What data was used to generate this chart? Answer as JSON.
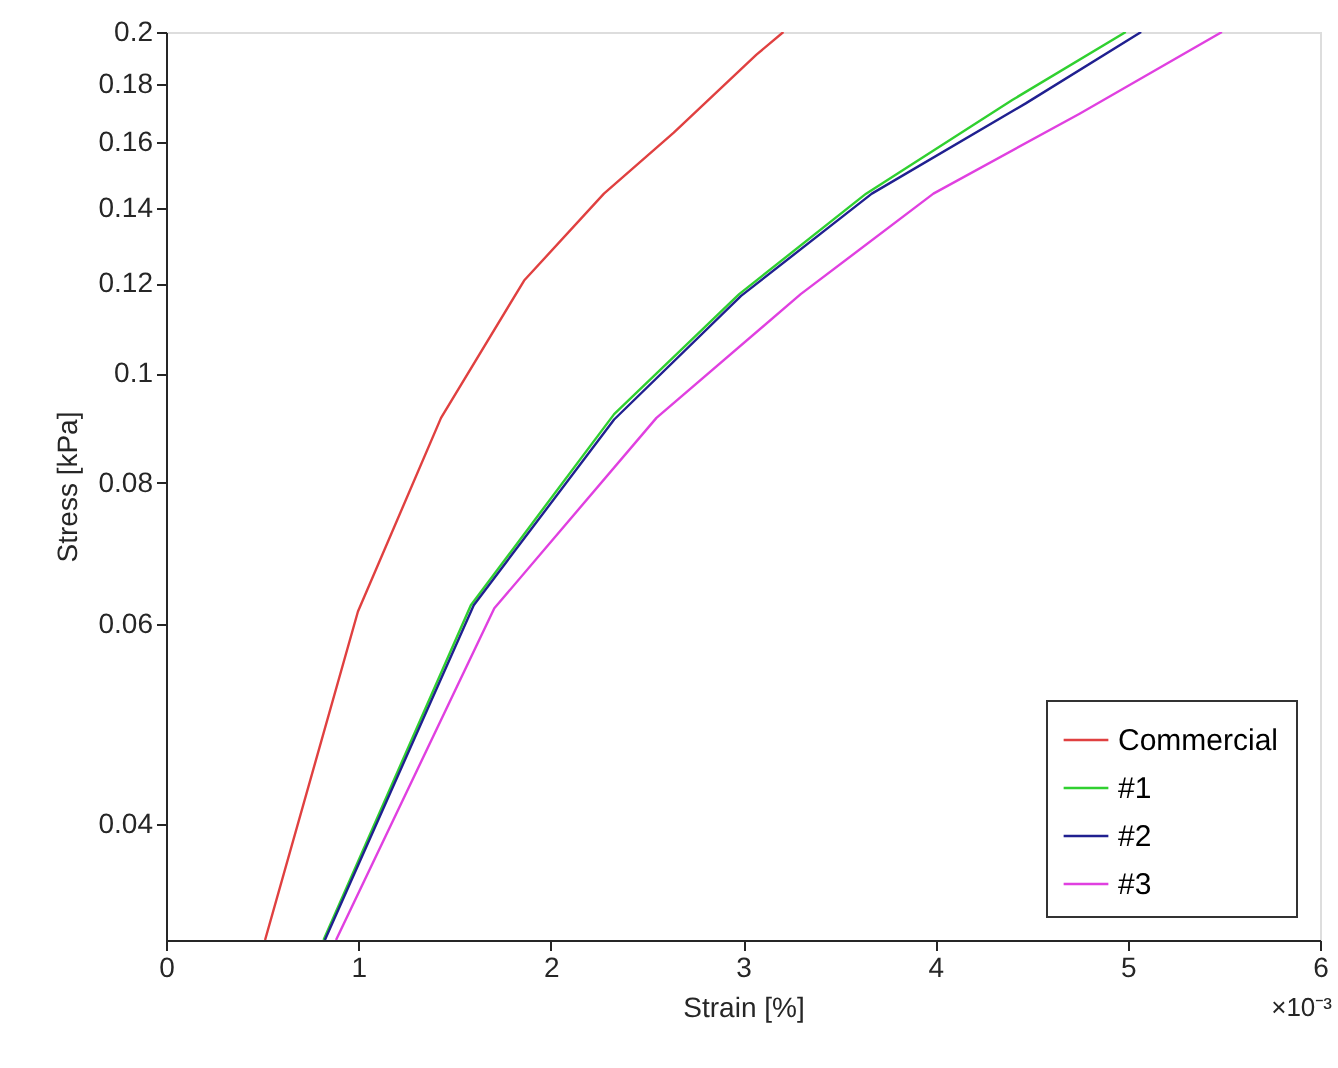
{
  "chart_data": {
    "type": "line",
    "xlabel": "Strain [%]",
    "ylabel": "Stress [kPa]",
    "xlim": [
      0,
      6
    ],
    "xticks": [
      0,
      1,
      2,
      3,
      4,
      5,
      6
    ],
    "ylim": [
      0.0316,
      0.2
    ],
    "yticks": [
      0.04,
      0.06,
      0.08,
      0.1,
      0.12,
      0.14,
      0.16,
      0.18,
      0.2
    ],
    "log": "y",
    "grid": false,
    "legend": "bottom right",
    "marker": "none",
    "line_style": "solid",
    "annotations": [
      "×10⁻³"
    ],
    "series": [
      {
        "name": "Commercial",
        "color": "#e04040",
        "x": [
          0.515,
          0.998,
          1.43,
          1.862,
          2.277,
          2.64,
          3.07,
          3.21
        ],
        "values": [
          0.0316,
          0.0616,
          0.0913,
          0.1207,
          0.144,
          0.163,
          0.191,
          0.2
        ]
      },
      {
        "name": "#1",
        "color": "#30d030",
        "x": [
          0.819,
          1.585,
          2.33,
          2.98,
          3.64,
          4.4,
          4.99
        ],
        "values": [
          0.0316,
          0.0624,
          0.092,
          0.1174,
          0.144,
          0.1742,
          0.2
        ]
      },
      {
        "name": "#2",
        "color": "#202090",
        "x": [
          0.826,
          1.6,
          2.33,
          2.99,
          3.67,
          4.47,
          5.07
        ],
        "values": [
          0.0316,
          0.0624,
          0.091,
          0.117,
          0.144,
          0.173,
          0.2
        ]
      },
      {
        "name": "#3",
        "color": "#e040e0",
        "x": [
          0.884,
          1.707,
          2.55,
          3.3,
          3.99,
          4.75,
          5.49
        ],
        "values": [
          0.0316,
          0.062,
          0.0913,
          0.1174,
          0.144,
          0.1694,
          0.2
        ]
      }
    ]
  }
}
